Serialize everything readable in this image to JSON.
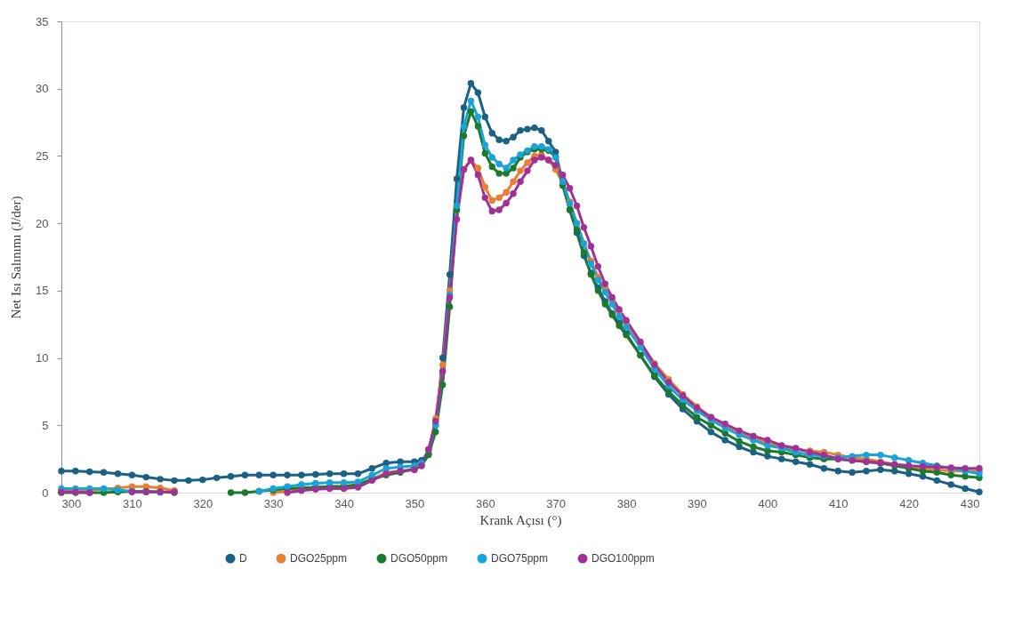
{
  "chart_data": {
    "type": "line",
    "xlabel": "Krank Açısı (°)",
    "ylabel": "Net Isı Salınımı (J/der)",
    "xlim": [
      300,
      430
    ],
    "ylim": [
      0,
      35
    ],
    "xticks": [
      300,
      310,
      320,
      330,
      340,
      350,
      360,
      370,
      380,
      390,
      400,
      410,
      420,
      430
    ],
    "yticks": [
      0,
      5,
      10,
      15,
      20,
      25,
      30,
      35
    ],
    "grid": false,
    "legend": "bottom",
    "marker": "circle",
    "line_style": "solid",
    "x": [
      300,
      302,
      304,
      306,
      308,
      310,
      312,
      314,
      316,
      318,
      320,
      322,
      324,
      326,
      328,
      330,
      332,
      334,
      336,
      338,
      340,
      342,
      344,
      346,
      348,
      350,
      351,
      352,
      353,
      354,
      355,
      356,
      357,
      358,
      359,
      360,
      361,
      362,
      363,
      364,
      365,
      366,
      367,
      368,
      369,
      370,
      371,
      372,
      373,
      374,
      375,
      376,
      377,
      378,
      379,
      380,
      382,
      384,
      386,
      388,
      390,
      392,
      394,
      396,
      398,
      400,
      402,
      404,
      406,
      408,
      410,
      412,
      414,
      416,
      418,
      420,
      422,
      424,
      426,
      428,
      430
    ],
    "series": [
      {
        "name": "D",
        "color": "#1b6183",
        "values": [
          1.6,
          1.6,
          1.55,
          1.5,
          1.4,
          1.3,
          1.15,
          1.0,
          0.9,
          0.9,
          0.95,
          1.1,
          1.2,
          1.3,
          1.3,
          1.3,
          1.3,
          1.3,
          1.35,
          1.4,
          1.4,
          1.4,
          1.8,
          2.2,
          2.3,
          2.3,
          2.4,
          2.9,
          5.0,
          10.0,
          16.2,
          23.3,
          28.6,
          30.4,
          29.7,
          27.9,
          26.7,
          26.2,
          26.1,
          26.4,
          26.9,
          27.0,
          27.1,
          26.9,
          26.1,
          25.3,
          23.0,
          21.0,
          19.3,
          17.6,
          16.3,
          15.2,
          14.2,
          13.3,
          12.6,
          11.8,
          10.2,
          8.6,
          7.3,
          6.2,
          5.3,
          4.5,
          3.9,
          3.4,
          3.0,
          2.7,
          2.5,
          2.3,
          2.1,
          1.8,
          1.6,
          1.5,
          1.6,
          1.7,
          1.6,
          1.4,
          1.2,
          0.9,
          0.6,
          0.3,
          0.05
        ]
      },
      {
        "name": "DGO25ppm",
        "color": "#e97f35",
        "values": [
          0.2,
          0.2,
          0.2,
          0.25,
          0.35,
          0.45,
          0.45,
          0.35,
          0.15,
          null,
          null,
          null,
          null,
          null,
          null,
          0.0,
          0.1,
          0.3,
          0.4,
          0.45,
          0.5,
          0.6,
          1.0,
          1.5,
          1.6,
          1.7,
          2.1,
          3.0,
          5.5,
          9.5,
          15.0,
          21.0,
          24.0,
          24.7,
          24.1,
          22.7,
          21.7,
          21.9,
          22.3,
          23.1,
          23.9,
          24.5,
          25.0,
          25.1,
          24.7,
          24.0,
          23.0,
          21.6,
          20.0,
          18.5,
          17.2,
          16.0,
          15.2,
          14.3,
          13.4,
          12.6,
          11.1,
          9.6,
          8.4,
          7.3,
          6.4,
          5.6,
          5.0,
          4.5,
          4.0,
          3.7,
          3.4,
          3.2,
          3.1,
          3.0,
          2.8,
          2.6,
          2.5,
          2.3,
          2.1,
          1.9,
          1.8,
          1.7,
          1.6,
          1.6,
          1.6
        ]
      },
      {
        "name": "DGO50ppm",
        "color": "#1d7a2d",
        "values": [
          0.0,
          0.0,
          0.0,
          0.0,
          0.05,
          0.1,
          0.1,
          0.05,
          0.0,
          null,
          null,
          null,
          0.0,
          0.0,
          0.1,
          0.2,
          0.3,
          0.35,
          0.4,
          0.45,
          0.45,
          0.6,
          1.0,
          1.3,
          1.5,
          1.8,
          2.0,
          2.8,
          4.5,
          8.0,
          13.8,
          21.0,
          26.5,
          28.3,
          27.2,
          25.2,
          24.2,
          23.7,
          23.7,
          24.1,
          24.9,
          25.3,
          25.5,
          25.5,
          25.4,
          24.9,
          22.8,
          21.0,
          19.5,
          17.8,
          16.2,
          15.0,
          14.0,
          13.2,
          12.4,
          11.7,
          10.2,
          8.7,
          7.5,
          6.5,
          5.6,
          5.0,
          4.4,
          3.8,
          3.4,
          3.1,
          3.0,
          2.8,
          2.6,
          2.5,
          2.5,
          2.4,
          2.3,
          2.2,
          2.0,
          1.8,
          1.6,
          1.5,
          1.3,
          1.2,
          1.1
        ]
      },
      {
        "name": "DGO75ppm",
        "color": "#18a3d9",
        "values": [
          0.3,
          0.3,
          0.3,
          0.3,
          0.2,
          0.1,
          0.05,
          0.02,
          null,
          null,
          null,
          null,
          null,
          null,
          0.1,
          0.3,
          0.45,
          0.6,
          0.7,
          0.75,
          0.75,
          0.8,
          1.3,
          1.8,
          1.9,
          2.0,
          2.2,
          3.2,
          5.0,
          9.0,
          14.7,
          21.3,
          27.2,
          29.1,
          27.9,
          25.8,
          24.9,
          24.4,
          24.1,
          24.7,
          25.1,
          25.4,
          25.7,
          25.7,
          25.5,
          24.9,
          23.1,
          21.5,
          20.0,
          18.5,
          17.0,
          15.8,
          14.9,
          14.0,
          13.1,
          12.3,
          10.8,
          9.2,
          7.9,
          6.9,
          6.1,
          5.4,
          4.8,
          4.3,
          3.9,
          3.5,
          3.3,
          3.0,
          2.8,
          2.7,
          2.6,
          2.7,
          2.8,
          2.8,
          2.6,
          2.4,
          2.2,
          2.0,
          1.8,
          1.6,
          1.4
        ]
      },
      {
        "name": "DGO100ppm",
        "color": "#a03297",
        "values": [
          0.05,
          0.05,
          0.0,
          null,
          null,
          0.05,
          0.05,
          0.05,
          0.05,
          null,
          null,
          null,
          null,
          null,
          null,
          null,
          0.0,
          0.15,
          0.25,
          0.3,
          0.3,
          0.4,
          0.9,
          1.4,
          1.6,
          1.7,
          2.0,
          3.2,
          5.3,
          9.0,
          14.5,
          20.3,
          24.0,
          24.7,
          23.6,
          21.9,
          20.9,
          21.0,
          21.5,
          22.2,
          23.1,
          23.9,
          24.7,
          24.9,
          24.7,
          24.3,
          23.6,
          22.6,
          21.3,
          19.7,
          18.3,
          16.8,
          15.5,
          14.5,
          13.6,
          12.8,
          11.2,
          9.5,
          8.2,
          7.2,
          6.3,
          5.6,
          5.1,
          4.6,
          4.2,
          3.9,
          3.5,
          3.3,
          3.0,
          2.8,
          2.5,
          2.4,
          2.3,
          2.2,
          2.1,
          2.0,
          1.95,
          1.9,
          1.85,
          1.8,
          1.8
        ]
      }
    ]
  }
}
